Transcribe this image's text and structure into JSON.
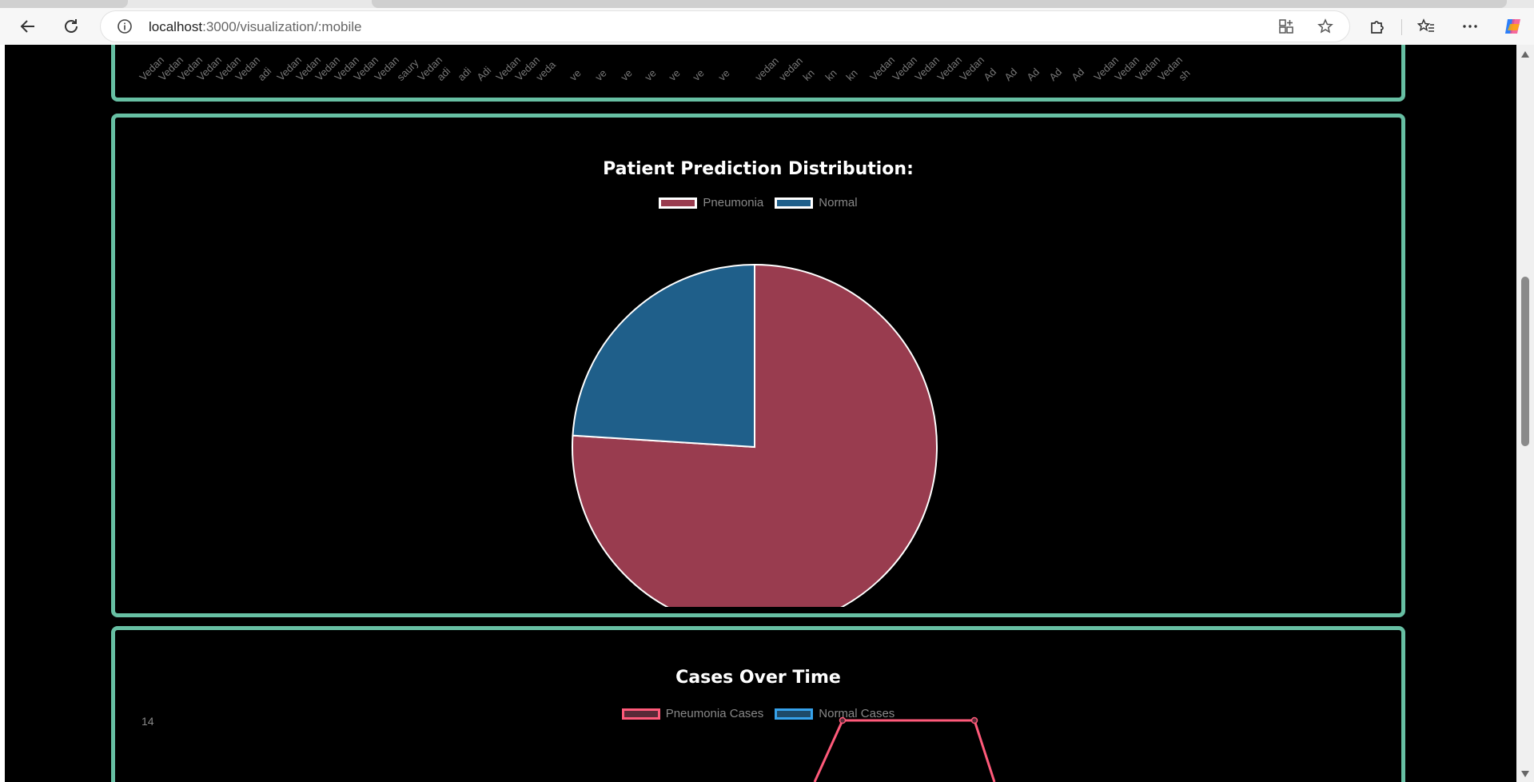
{
  "browser": {
    "url_host": "localhost",
    "url_rest": ":3000/visualization/:mobile"
  },
  "top_chart": {
    "tick_labels": [
      "Vedan",
      "Vedan",
      "Vedan",
      "Vedan",
      "Vedan",
      "Vedan",
      "adi",
      "Vedan",
      "Vedan",
      "Vedan",
      "Vedan",
      "Vedan",
      "Vedan",
      "saury",
      "Vedan",
      "adi",
      "adi",
      "Adi",
      "Vedan",
      "Vedan",
      "veda",
      "ve",
      "ve",
      "ve",
      "ve",
      "ve",
      "ve",
      "ve",
      "vedan",
      "vedan",
      "kn",
      "kn",
      "kn",
      "Vedan",
      "Vedan",
      "Vedan",
      "Vedan",
      "Vedan",
      "Ad",
      "Ad",
      "Ad",
      "Ad",
      "Ad",
      "Vedan",
      "Vedan",
      "Vedan",
      "Vedan",
      "sh"
    ]
  },
  "pie_card": {
    "title": "Patient Prediction Distribution:",
    "chart_data": {
      "type": "pie",
      "title": "Patient Prediction Distribution:",
      "labels": [
        "Pneumonia",
        "Normal"
      ],
      "values": [
        76,
        24
      ],
      "colors": [
        "#993c4f",
        "#1f5f8a"
      ],
      "border_color": "#ffffff",
      "legend_position": "top"
    }
  },
  "line_card": {
    "title": "Cases Over Time",
    "legend": [
      {
        "label": "Pneumonia Cases",
        "color": "#ff5a7a",
        "fill": "#5a2a38"
      },
      {
        "label": "Normal Cases",
        "color": "#36a2eb",
        "fill": "#1e4a68"
      }
    ],
    "y_top_label": "14",
    "chart_data": {
      "type": "line",
      "title": "Cases Over Time",
      "series": [
        {
          "name": "Pneumonia Cases",
          "color": "#ff5a7a",
          "visible_values": [
            14,
            14
          ]
        }
      ],
      "y_visible_max": 14
    }
  }
}
